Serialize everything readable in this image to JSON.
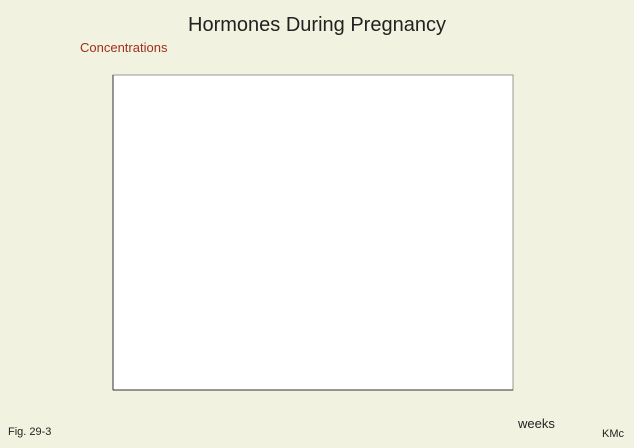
{
  "page": {
    "title": "Hormones During Pregnancy",
    "figure": "Fig. 29-3",
    "author": "KMc"
  },
  "chart_data": {
    "type": "line",
    "title": "Hormones During Pregnancy",
    "ylabel": "Concentrations",
    "xlabel": "weeks",
    "series": []
  }
}
